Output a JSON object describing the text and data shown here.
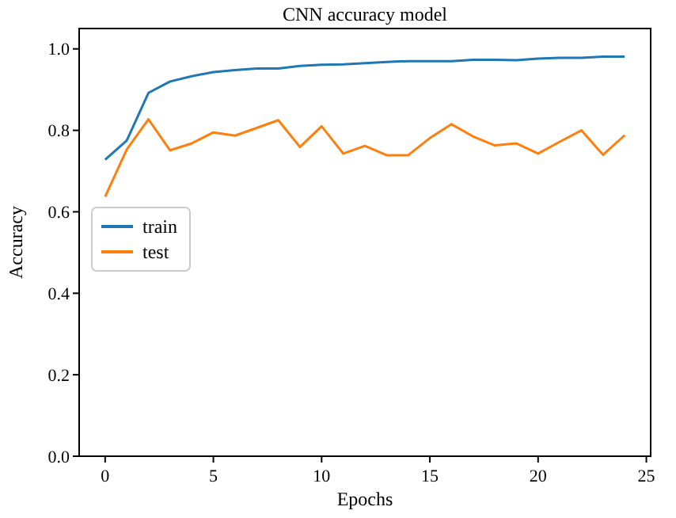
{
  "chart_data": {
    "type": "line",
    "title": "CNN accuracy model",
    "xlabel": "Epochs",
    "ylabel": "Accuracy",
    "x": [
      0,
      1,
      2,
      3,
      4,
      5,
      6,
      7,
      8,
      9,
      10,
      11,
      12,
      13,
      14,
      15,
      16,
      17,
      18,
      19,
      20,
      21,
      22,
      23,
      24
    ],
    "series": [
      {
        "name": "train",
        "color": "#1f77b4",
        "values": [
          0.728,
          0.775,
          0.892,
          0.92,
          0.933,
          0.943,
          0.948,
          0.952,
          0.952,
          0.958,
          0.961,
          0.962,
          0.965,
          0.968,
          0.97,
          0.97,
          0.97,
          0.973,
          0.973,
          0.972,
          0.976,
          0.978,
          0.978,
          0.981,
          0.981
        ]
      },
      {
        "name": "test",
        "color": "#ff7f0e",
        "values": [
          0.637,
          0.753,
          0.827,
          0.751,
          0.768,
          0.795,
          0.787,
          0.806,
          0.825,
          0.759,
          0.81,
          0.743,
          0.762,
          0.739,
          0.739,
          0.781,
          0.815,
          0.785,
          0.763,
          0.768,
          0.743,
          0.772,
          0.8,
          0.74,
          0.788
        ]
      }
    ],
    "xlim": [
      -1.2,
      25.2
    ],
    "xticks": [
      0,
      5,
      10,
      15,
      20,
      25
    ],
    "ylim": [
      0,
      1.05
    ],
    "yticks": [
      {
        "value": 0,
        "label": "0.0"
      },
      {
        "value": 0.2,
        "label": "0.2"
      },
      {
        "value": 0.4,
        "label": "0.4"
      },
      {
        "value": 0.6,
        "label": "0.6"
      },
      {
        "value": 0.8,
        "label": "0.8"
      },
      {
        "value": 1,
        "label": "1.0"
      }
    ],
    "legend": "left",
    "grid": false,
    "marker": "none",
    "line_style": "solid"
  }
}
